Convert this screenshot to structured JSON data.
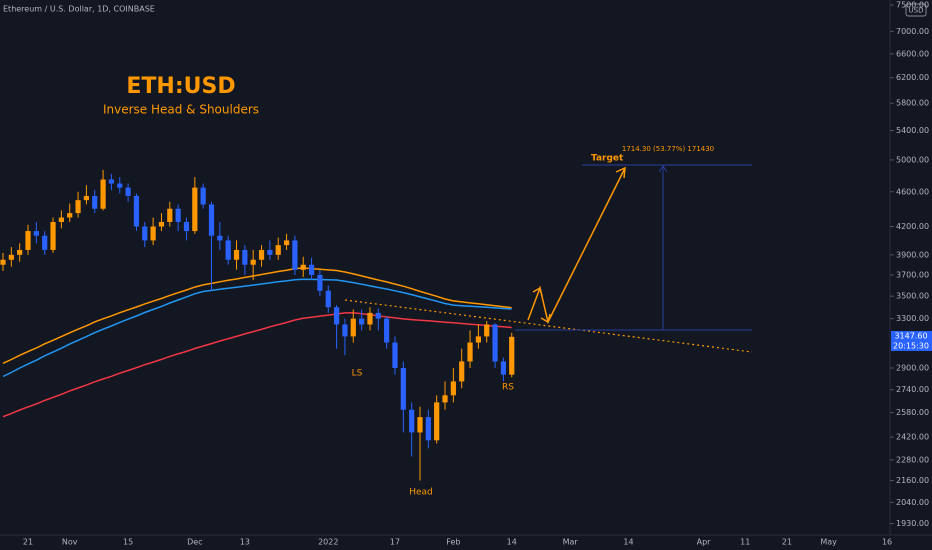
{
  "header": "Ethereum / U.S. Dollar, 1D, COINBASE",
  "currency": "USD",
  "price_tag": {
    "price": "3147.60",
    "countdown": "20:15:30"
  },
  "chart_data": {
    "type": "candlestick",
    "title": "ETH:USD",
    "subtitle": "Inverse Head & Shoulders",
    "annotations": {
      "left_shoulder": "LS",
      "head": "Head",
      "right_shoulder": "RS",
      "target": "Target",
      "measure": "1714.30 (53.77%) 171430"
    },
    "log_scale": true,
    "up_color": "#ff9800",
    "down_color": "#2962ff",
    "ylim": [
      1873,
      7599
    ],
    "yticks": [
      {
        "value": 7500,
        "label": "7500.00"
      },
      {
        "value": 7000,
        "label": "7000.00"
      },
      {
        "value": 6600,
        "label": "6600.00"
      },
      {
        "value": 6200,
        "label": "6200.00"
      },
      {
        "value": 5800,
        "label": "5800.00"
      },
      {
        "value": 5400,
        "label": "5400.00"
      },
      {
        "value": 5000,
        "label": "5000.00"
      },
      {
        "value": 4600,
        "label": "4600.00"
      },
      {
        "value": 4200,
        "label": "4200.00"
      },
      {
        "value": 3900,
        "label": "3900.00"
      },
      {
        "value": 3700,
        "label": "3700.00"
      },
      {
        "value": 3500,
        "label": "3500.00"
      },
      {
        "value": 3300,
        "label": "3300.00"
      },
      {
        "value": 2900,
        "label": "2900.00"
      },
      {
        "value": 2740,
        "label": "2740.00"
      },
      {
        "value": 2580,
        "label": "2580.00"
      },
      {
        "value": 2420,
        "label": "2420.00"
      },
      {
        "value": 2280,
        "label": "2280.00"
      },
      {
        "value": 2160,
        "label": "2160.00"
      },
      {
        "value": 2040,
        "label": "2040.00"
      },
      {
        "value": 1930,
        "label": "1930.00"
      }
    ],
    "categories": [
      null,
      null,
      null,
      "21",
      null,
      null,
      null,
      null,
      "Nov",
      null,
      null,
      null,
      null,
      null,
      null,
      "15",
      null,
      null,
      null,
      null,
      null,
      null,
      null,
      "Dec",
      null,
      null,
      null,
      null,
      null,
      "13",
      null,
      null,
      null,
      null,
      null,
      null,
      null,
      null,
      null,
      "2022",
      null,
      null,
      null,
      null,
      null,
      null,
      null,
      "17",
      null,
      null,
      null,
      null,
      null,
      null,
      "Feb",
      null,
      null,
      null,
      null,
      null,
      null,
      "14",
      null,
      null,
      null,
      null,
      null,
      null,
      "Mar",
      null,
      null,
      null,
      null,
      null,
      null,
      "14",
      null,
      null,
      null,
      null,
      null,
      null,
      null,
      null,
      "Apr",
      null,
      null,
      null,
      null,
      "11",
      null,
      null,
      null,
      null,
      "21",
      null,
      null,
      null,
      null,
      "May",
      null,
      null,
      null,
      null,
      null,
      null,
      "16"
    ],
    "open": [
      3800,
      3850,
      3900,
      3950,
      4150,
      4100,
      3950,
      4250,
      4300,
      4350,
      4500,
      4550,
      4400,
      4750,
      4700,
      4650,
      4550,
      4200,
      4050,
      4200,
      4250,
      4400,
      4250,
      4150,
      4650,
      4450,
      4100,
      4050,
      3850,
      3950,
      3800,
      3850,
      3950,
      3900,
      4000,
      4050,
      3750,
      3800,
      3700,
      3550,
      3400,
      3250,
      3150,
      3300,
      3250,
      3350,
      3300,
      3100,
      2900,
      2600,
      2450,
      2550,
      2400,
      2650,
      2700,
      2800,
      2950,
      3100,
      3150,
      3250,
      2950,
      2850,
      null,
      null,
      null,
      null,
      null,
      null,
      null,
      null,
      null,
      null,
      null,
      null,
      null,
      null,
      null,
      null,
      null,
      null,
      null,
      null,
      null,
      null,
      null,
      null,
      null,
      null,
      null,
      null,
      null,
      null,
      null,
      null,
      null,
      null,
      null,
      null,
      null,
      null,
      null,
      null,
      null,
      null,
      null,
      null,
      null
    ],
    "high": [
      3920,
      3980,
      4020,
      4220,
      4250,
      4150,
      4300,
      4380,
      4460,
      4600,
      4680,
      4620,
      4870,
      4820,
      4780,
      4700,
      4580,
      4250,
      4300,
      4350,
      4480,
      4450,
      4300,
      4780,
      4700,
      4480,
      4250,
      4100,
      4050,
      4000,
      3950,
      4000,
      4050,
      4080,
      4120,
      4100,
      3880,
      3870,
      3750,
      3600,
      3420,
      3300,
      3380,
      3380,
      3400,
      3390,
      3320,
      3150,
      2950,
      2650,
      2620,
      2600,
      2700,
      2800,
      2900,
      3050,
      3200,
      3250,
      3280,
      3260,
      2980,
      3180,
      null,
      null,
      null,
      null,
      null,
      null,
      null,
      null,
      null,
      null,
      null,
      null,
      null,
      null,
      null,
      null,
      null,
      null,
      null,
      null,
      null,
      null,
      null,
      null,
      null,
      null,
      null,
      null,
      null,
      null,
      null,
      null,
      null,
      null,
      null,
      null,
      null,
      null,
      null,
      null,
      null,
      null,
      null,
      null,
      null
    ],
    "low": [
      3740,
      3780,
      3830,
      3900,
      4020,
      3900,
      3920,
      4180,
      4250,
      4300,
      4450,
      4350,
      4380,
      4620,
      4580,
      4480,
      4150,
      3980,
      4000,
      4150,
      4200,
      4150,
      4050,
      4120,
      4400,
      3550,
      3950,
      3800,
      3750,
      3700,
      3650,
      3780,
      3850,
      3850,
      3950,
      3700,
      3680,
      3650,
      3500,
      3350,
      3050,
      3000,
      3100,
      3200,
      3200,
      3200,
      3050,
      2850,
      2450,
      2300,
      2160,
      2350,
      2380,
      2600,
      2650,
      2750,
      2900,
      3050,
      3100,
      2900,
      2800,
      2830,
      null,
      null,
      null,
      null,
      null,
      null,
      null,
      null,
      null,
      null,
      null,
      null,
      null,
      null,
      null,
      null,
      null,
      null,
      null,
      null,
      null,
      null,
      null,
      null,
      null,
      null,
      null,
      null,
      null,
      null,
      null,
      null,
      null,
      null,
      null,
      null,
      null,
      null,
      null,
      null,
      null,
      null,
      null,
      null,
      null
    ],
    "close": [
      3850,
      3900,
      3950,
      4150,
      4100,
      3950,
      4250,
      4300,
      4350,
      4500,
      4550,
      4400,
      4750,
      4700,
      4650,
      4550,
      4200,
      4050,
      4200,
      4250,
      4400,
      4250,
      4150,
      4650,
      4450,
      4100,
      4050,
      3850,
      3950,
      3800,
      3850,
      3950,
      3900,
      4000,
      4050,
      3750,
      3800,
      3700,
      3550,
      3400,
      3250,
      3150,
      3300,
      3250,
      3350,
      3300,
      3100,
      2900,
      2600,
      2450,
      2550,
      2400,
      2650,
      2700,
      2800,
      2950,
      3100,
      3150,
      3250,
      2950,
      2850,
      3147,
      null,
      null,
      null,
      null,
      null,
      null,
      null,
      null,
      null,
      null,
      null,
      null,
      null,
      null,
      null,
      null,
      null,
      null,
      null,
      null,
      null,
      null,
      null,
      null,
      null,
      null,
      null,
      null,
      null,
      null,
      null,
      null,
      null,
      null,
      null,
      null,
      null,
      null,
      null,
      null,
      null,
      null,
      null,
      null,
      null
    ],
    "series": [
      {
        "color": "#ff9800",
        "values": [
          2936,
          2965,
          2998,
          3027,
          3056,
          3090,
          3118,
          3148,
          3180,
          3210,
          3239,
          3272,
          3299,
          3324,
          3352,
          3377,
          3402,
          3430,
          3454,
          3479,
          3507,
          3532,
          3557,
          3584,
          3605,
          3619,
          3634,
          3648,
          3661,
          3676,
          3690,
          3704,
          3719,
          3733,
          3746,
          3762,
          3768,
          3762,
          3755,
          3749,
          3743,
          3728,
          3710,
          3691,
          3670,
          3651,
          3633,
          3612,
          3592,
          3569,
          3544,
          3522,
          3499,
          3474,
          3457,
          3448,
          3439,
          3431,
          3422,
          3413,
          3405,
          3396,
          null,
          null,
          null,
          null,
          null,
          null,
          null,
          null,
          null,
          null,
          null,
          null,
          null,
          null,
          null,
          null,
          null,
          null,
          null,
          null,
          null,
          null,
          null,
          null,
          null,
          null,
          null,
          null,
          null,
          null,
          null,
          null,
          null,
          null,
          null,
          null,
          null,
          null,
          null,
          null,
          null,
          null,
          null,
          null,
          null
        ]
      },
      {
        "color": "#2196f3",
        "values": [
          2836,
          2866,
          2900,
          2930,
          2960,
          2994,
          3023,
          3054,
          3087,
          3118,
          3148,
          3181,
          3210,
          3237,
          3268,
          3295,
          3323,
          3353,
          3380,
          3407,
          3438,
          3465,
          3493,
          3522,
          3543,
          3553,
          3564,
          3574,
          3583,
          3593,
          3603,
          3613,
          3624,
          3634,
          3643,
          3654,
          3659,
          3657,
          3655,
          3653,
          3651,
          3640,
          3626,
          3611,
          3595,
          3580,
          3566,
          3549,
          3533,
          3514,
          3493,
          3474,
          3454,
          3433,
          3419,
          3414,
          3409,
          3404,
          3399,
          3394,
          3389,
          3384,
          null,
          null,
          null,
          null,
          null,
          null,
          null,
          null,
          null,
          null,
          null,
          null,
          null,
          null,
          null,
          null,
          null,
          null,
          null,
          null,
          null,
          null,
          null,
          null,
          null,
          null,
          null,
          null,
          null,
          null,
          null,
          null,
          null,
          null,
          null,
          null,
          null,
          null,
          null,
          null,
          null,
          null,
          null,
          null,
          null
        ]
      },
      {
        "color": "#f23645",
        "values": [
          2553,
          2574,
          2598,
          2619,
          2640,
          2664,
          2685,
          2707,
          2731,
          2752,
          2773,
          2797,
          2818,
          2838,
          2861,
          2881,
          2902,
          2925,
          2945,
          2966,
          2989,
          3009,
          3029,
          3052,
          3072,
          3091,
          3112,
          3131,
          3150,
          3171,
          3190,
          3208,
          3230,
          3248,
          3267,
          3288,
          3303,
          3312,
          3322,
          3331,
          3340,
          3350,
          3352,
          3343,
          3333,
          3324,
          3315,
          3306,
          3298,
          3292,
          3286,
          3281,
          3275,
          3269,
          3264,
          3258,
          3252,
          3247,
          3241,
          3235,
          3230,
          3224,
          null,
          null,
          null,
          null,
          null,
          null,
          null,
          null,
          null,
          null,
          null,
          null,
          null,
          null,
          null,
          null,
          null,
          null,
          null,
          null,
          null,
          null,
          null,
          null,
          null,
          null,
          null,
          null,
          null,
          null,
          null,
          null,
          null,
          null,
          null,
          null,
          null,
          null,
          null,
          null,
          null,
          null,
          null,
          null,
          null
        ]
      }
    ]
  }
}
